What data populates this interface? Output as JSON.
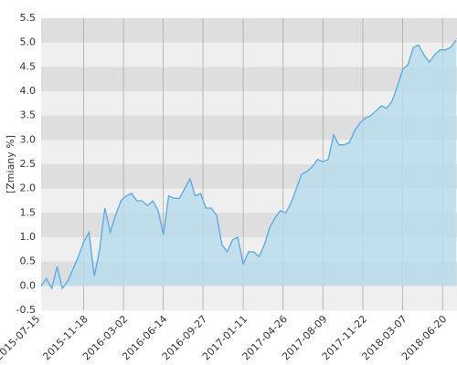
{
  "chart_data": {
    "type": "area",
    "y_label": "[Zmiany %]",
    "x": [
      "2015-07-29",
      "2015-08-12",
      "2015-08-26",
      "2015-09-09",
      "2015-09-23",
      "2015-10-07",
      "2015-10-21",
      "2015-11-04",
      "2015-11-18",
      "2015-12-02",
      "2015-12-16",
      "2015-12-30",
      "2016-01-13",
      "2016-01-27",
      "2016-02-10",
      "2016-02-24",
      "2016-03-09",
      "2016-03-23",
      "2016-04-06",
      "2016-04-20",
      "2016-05-04",
      "2016-05-18",
      "2016-06-01",
      "2016-06-15",
      "2016-06-29",
      "2016-07-13",
      "2016-07-27",
      "2016-08-10",
      "2016-08-24",
      "2016-09-07",
      "2016-09-21",
      "2016-10-05",
      "2016-10-19",
      "2016-11-02",
      "2016-11-16",
      "2016-11-30",
      "2016-12-14",
      "2016-12-28",
      "2017-01-11",
      "2017-01-25",
      "2017-02-08",
      "2017-02-22",
      "2017-03-08",
      "2017-03-22",
      "2017-04-05",
      "2017-04-19",
      "2017-05-03",
      "2017-05-17",
      "2017-05-31",
      "2017-06-14",
      "2017-06-28",
      "2017-07-12",
      "2017-07-26",
      "2017-08-09",
      "2017-08-23",
      "2017-09-06",
      "2017-09-20",
      "2017-10-04",
      "2017-10-18",
      "2017-11-01",
      "2017-11-15",
      "2017-11-29",
      "2017-12-13",
      "2017-12-27",
      "2018-01-10",
      "2018-01-24",
      "2018-02-07",
      "2018-02-21",
      "2018-03-07",
      "2018-03-21",
      "2018-04-04",
      "2018-04-18",
      "2018-05-02",
      "2018-05-16",
      "2018-05-30",
      "2018-06-13",
      "2018-06-27",
      "2018-07-11",
      "2018-07-25"
    ],
    "series": [
      {
        "color": "#56a9e6",
        "fill": "#b9dcec",
        "values": [
          0.0,
          0.15,
          -0.05,
          0.4,
          -0.05,
          0.1,
          0.35,
          0.6,
          0.9,
          1.1,
          0.2,
          0.75,
          1.6,
          1.1,
          1.45,
          1.75,
          1.85,
          1.9,
          1.75,
          1.75,
          1.65,
          1.75,
          1.55,
          1.05,
          1.85,
          1.8,
          1.8,
          2.0,
          2.2,
          1.85,
          1.9,
          1.6,
          1.6,
          1.45,
          0.85,
          0.7,
          0.95,
          1.0,
          0.45,
          0.7,
          0.7,
          0.6,
          0.85,
          1.2,
          1.4,
          1.55,
          1.5,
          1.7,
          2.0,
          2.3,
          2.35,
          2.45,
          2.6,
          2.55,
          2.6,
          3.1,
          2.9,
          2.9,
          2.95,
          3.2,
          3.35,
          3.45,
          3.5,
          3.6,
          3.7,
          3.65,
          3.8,
          4.1,
          4.45,
          4.55,
          4.9,
          4.95,
          4.75,
          4.6,
          4.75,
          4.85,
          4.85,
          4.9,
          5.05
        ]
      }
    ],
    "xlim": [
      "2015-07-29",
      "2018-07-28"
    ],
    "xticks": [
      "2015-07-15",
      "2015-11-18",
      "2016-03-02",
      "2016-06-14",
      "2016-09-27",
      "2017-01-11",
      "2017-04-26",
      "2017-08-09",
      "2017-11-22",
      "2018-03-07",
      "2018-06-20"
    ],
    "ylim": [
      -0.5,
      5.5
    ],
    "yticks": [
      -0.5,
      {
        "value": 0,
        "label": "0.0"
      },
      0.5,
      {
        "value": 1,
        "label": "1.0"
      },
      1.5,
      {
        "value": 2,
        "label": "2.0"
      },
      2.5,
      {
        "value": 3,
        "label": "3.0"
      },
      3.5,
      {
        "value": 4,
        "label": "4.0"
      },
      4.5,
      {
        "value": 5,
        "label": "5.0"
      },
      5.5
    ],
    "grid": true
  }
}
